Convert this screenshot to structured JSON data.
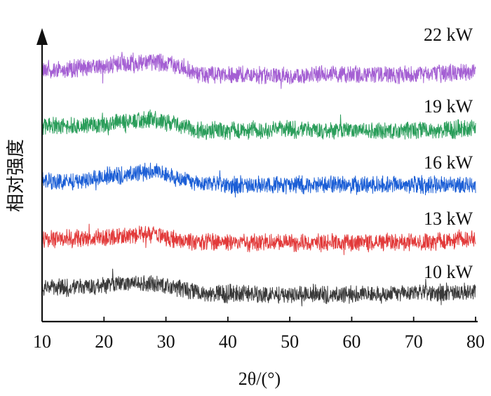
{
  "chart_data": {
    "type": "line",
    "title": "",
    "xlabel": "2θ/(°)",
    "ylabel": "相对强度",
    "xlim": [
      10,
      80
    ],
    "xticks": [
      10,
      20,
      30,
      40,
      50,
      60,
      70,
      80
    ],
    "y_ticks_shown": false,
    "grid": false,
    "legend": "labels above each trace, right side",
    "stacked_offset": true,
    "x": [
      10,
      15,
      20,
      25,
      28,
      30,
      33,
      35,
      40,
      45,
      50,
      55,
      60,
      65,
      70,
      75,
      80
    ],
    "series": [
      {
        "name": "22 kW",
        "color": "#a45fd3",
        "values": [
          0.0,
          0.0,
          0.05,
          0.08,
          0.12,
          0.08,
          0.02,
          -0.08,
          -0.1,
          -0.1,
          -0.1,
          -0.09,
          -0.09,
          -0.09,
          -0.09,
          -0.07,
          -0.04
        ]
      },
      {
        "name": "19 kW",
        "color": "#2a9d5a",
        "values": [
          0.0,
          0.0,
          0.04,
          0.08,
          0.12,
          0.06,
          0.0,
          -0.06,
          -0.07,
          -0.06,
          -0.06,
          -0.06,
          -0.06,
          -0.06,
          -0.06,
          -0.05,
          -0.04
        ]
      },
      {
        "name": "16 kW",
        "color": "#1c5fd6",
        "values": [
          0.0,
          0.0,
          0.06,
          0.13,
          0.16,
          0.1,
          0.02,
          -0.05,
          -0.06,
          -0.06,
          -0.06,
          -0.06,
          -0.06,
          -0.06,
          -0.06,
          -0.06,
          -0.06
        ]
      },
      {
        "name": "13 kW",
        "color": "#e23a3a",
        "values": [
          0.0,
          0.0,
          0.02,
          0.05,
          0.07,
          0.02,
          -0.04,
          -0.06,
          -0.06,
          -0.06,
          -0.06,
          -0.06,
          -0.06,
          -0.06,
          -0.06,
          -0.04,
          0.02
        ]
      },
      {
        "name": "10 kW",
        "color": "#3a3a3a",
        "values": [
          0.0,
          0.02,
          0.07,
          0.1,
          0.1,
          0.07,
          0.0,
          -0.05,
          -0.07,
          -0.08,
          -0.08,
          -0.08,
          -0.08,
          -0.08,
          -0.07,
          -0.05,
          -0.04
        ]
      }
    ]
  }
}
